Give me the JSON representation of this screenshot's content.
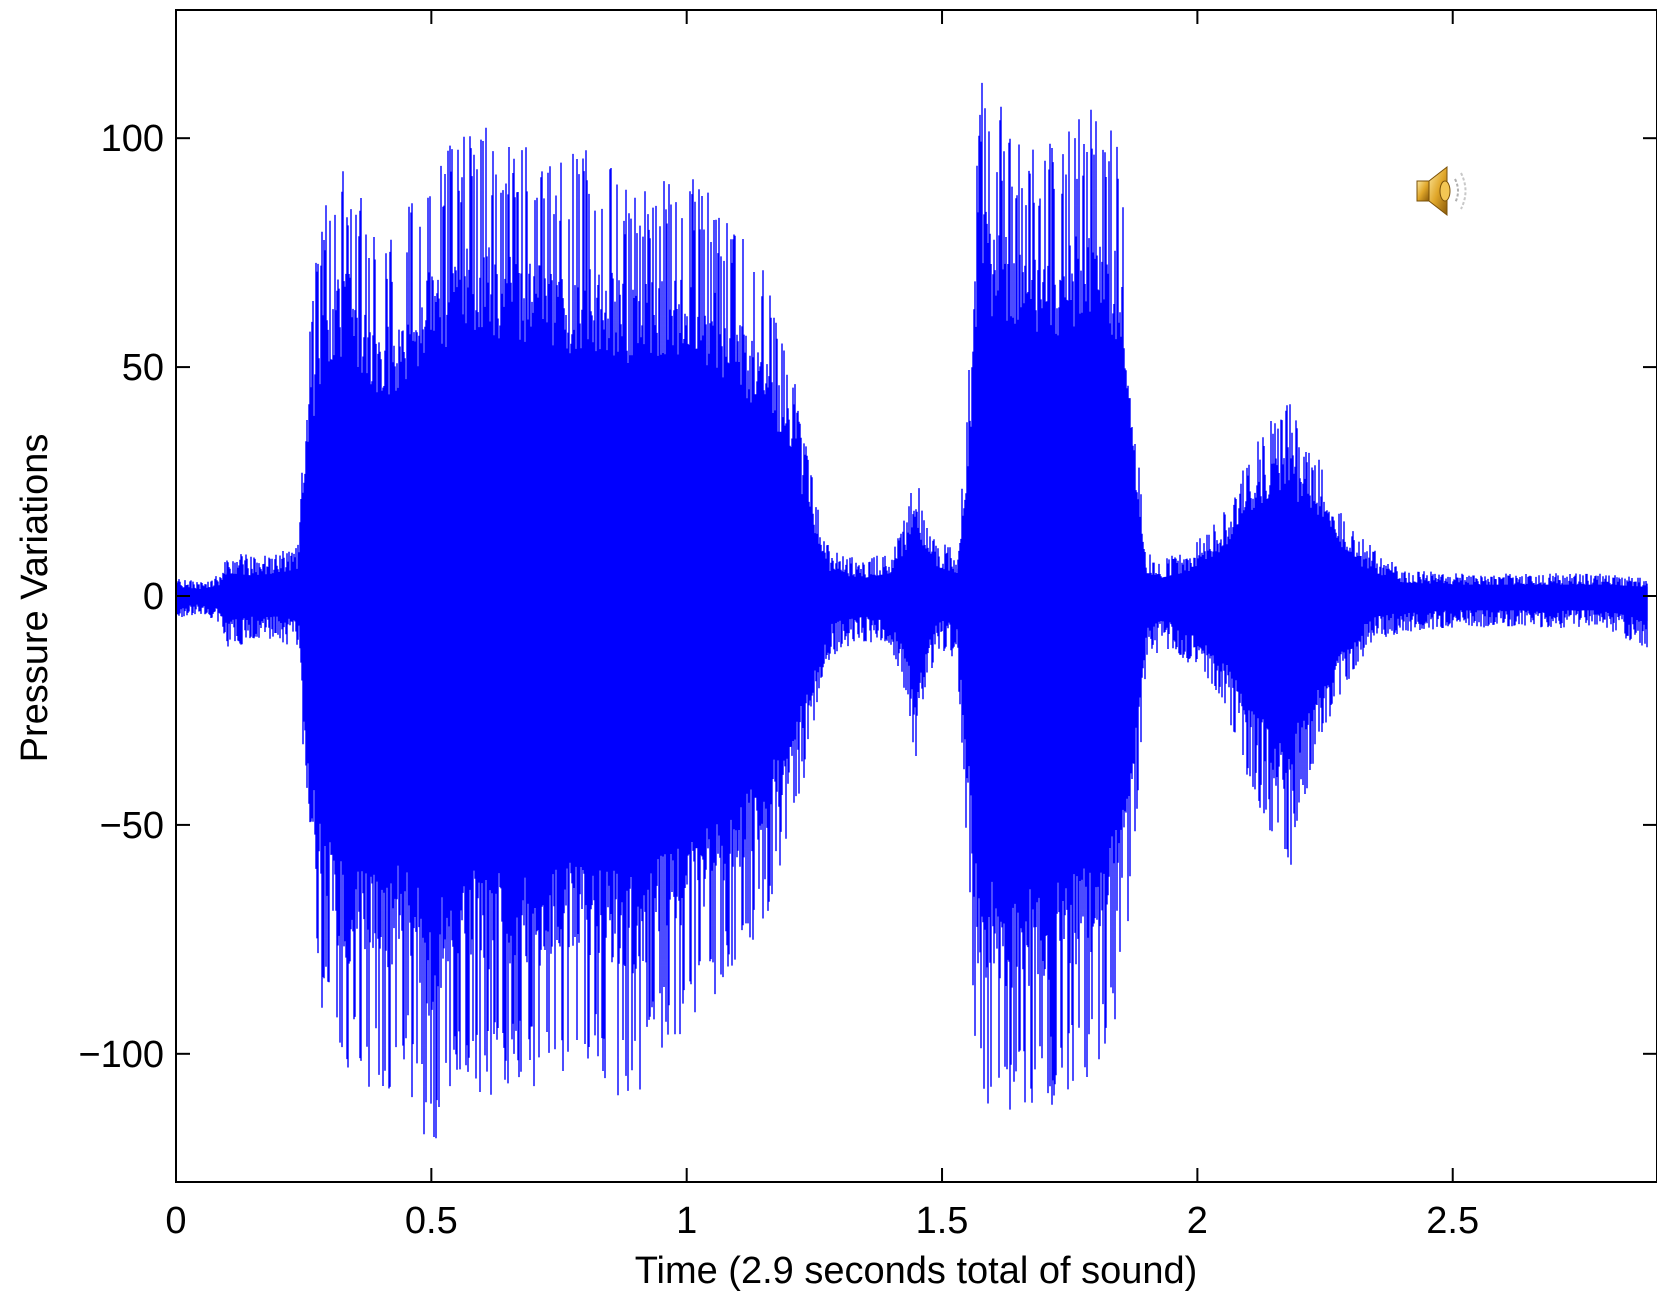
{
  "chart_data": {
    "type": "line",
    "xlabel": "Time (2.9 seconds total of sound)",
    "ylabel": "Pressure Variations",
    "xlim": [
      0,
      2.9
    ],
    "ylim": [
      -128,
      128
    ],
    "xticks": [
      0,
      0.5,
      1,
      1.5,
      2,
      2.5
    ],
    "xtick_labels": [
      "0",
      "0.5",
      "1",
      "1.5",
      "2",
      "2.5"
    ],
    "yticks": [
      100,
      50,
      0,
      -50,
      -100
    ],
    "ytick_labels": [
      "100",
      "50",
      "0",
      "−50",
      "−100"
    ],
    "grid": false,
    "legend": "none",
    "series": [
      {
        "color": "#0000ff",
        "envelope": {
          "x": [
            0.0,
            0.05,
            0.09,
            0.1,
            0.15,
            0.2,
            0.24,
            0.25,
            0.26,
            0.28,
            0.3,
            0.33,
            0.37,
            0.4,
            0.45,
            0.5,
            0.55,
            0.6,
            0.65,
            0.7,
            0.75,
            0.8,
            0.85,
            0.9,
            0.95,
            1.0,
            1.05,
            1.1,
            1.15,
            1.2,
            1.24,
            1.27,
            1.3,
            1.35,
            1.4,
            1.43,
            1.45,
            1.47,
            1.5,
            1.53,
            1.55,
            1.57,
            1.6,
            1.65,
            1.7,
            1.75,
            1.8,
            1.85,
            1.88,
            1.9,
            1.93,
            1.97,
            2.0,
            2.05,
            2.1,
            2.15,
            2.18,
            2.2,
            2.25,
            2.3,
            2.35,
            2.4,
            2.5,
            2.6,
            2.7,
            2.8,
            2.88
          ],
          "upper": [
            4,
            3,
            5,
            10,
            9,
            10,
            12,
            36,
            60,
            82,
            88,
            97,
            86,
            76,
            85,
            96,
            100,
            103,
            100,
            98,
            95,
            98,
            96,
            90,
            93,
            95,
            90,
            80,
            72,
            55,
            30,
            12,
            9,
            8,
            10,
            18,
            28,
            15,
            12,
            10,
            40,
            115,
            110,
            100,
            98,
            103,
            110,
            100,
            40,
            10,
            8,
            10,
            12,
            18,
            30,
            40,
            44,
            36,
            28,
            15,
            10,
            6,
            5,
            5,
            5,
            5,
            4
          ],
          "lower": [
            -5,
            -4,
            -6,
            -12,
            -10,
            -10,
            -12,
            -40,
            -65,
            -88,
            -96,
            -108,
            -108,
            -110,
            -105,
            -125,
            -105,
            -110,
            -108,
            -110,
            -105,
            -107,
            -108,
            -112,
            -100,
            -98,
            -90,
            -80,
            -72,
            -55,
            -35,
            -15,
            -12,
            -10,
            -12,
            -22,
            -40,
            -18,
            -12,
            -14,
            -60,
            -110,
            -113,
            -115,
            -114,
            -108,
            -105,
            -90,
            -50,
            -15,
            -12,
            -14,
            -16,
            -24,
            -40,
            -55,
            -62,
            -48,
            -30,
            -18,
            -10,
            -8,
            -7,
            -7,
            -7,
            -7,
            -12
          ]
        }
      }
    ]
  },
  "speaker_icon": {
    "name": "speaker-icon"
  }
}
